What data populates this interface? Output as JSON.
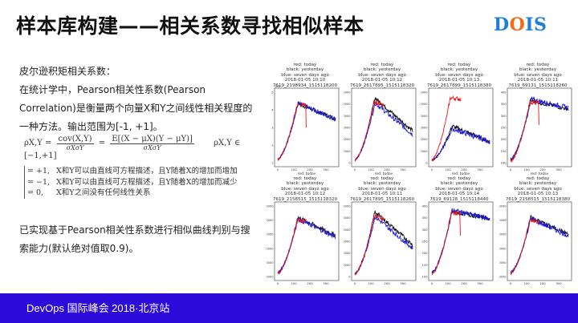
{
  "header": {
    "title": "样本库构建——相关系数寻找相似样本",
    "logo": {
      "text": "DOIS",
      "letters": [
        "D",
        "O",
        "I",
        "S"
      ],
      "colors": {
        "blue": "#1f7fd6",
        "orange": "#f26b1d"
      }
    }
  },
  "left_panel": {
    "heading": "皮尔逊积矩相关系数：",
    "paragraph_lines": [
      "在统计学中，Pearson相关性系数(Pearson",
      "Correlation)是衡量两个向量X和Y之间线性相关程度的",
      "一种方法。输出范围为[-1, +1]。"
    ],
    "formula": {
      "lhs": "ρX,Y =",
      "frac1_num": "cov(X,Y)",
      "frac1_den": "σXσY",
      "eq": "=",
      "frac2_num": "E[(X − μX)(Y − μY)]",
      "frac2_den": "σXσY",
      "range": "ρX,Y ∈ [−1,+1]"
    },
    "cases": [
      {
        "value": "= +1,",
        "desc": "X和Y可以由直线可方程描述，且Y随着X的增加而增加"
      },
      {
        "value": "= −1,",
        "desc": "X和Y可以由直线可方程描述，且Y随着X的增加而减少"
      },
      {
        "value": "= 0,",
        "desc": "X和Y之间没有任何线性关系"
      }
    ],
    "summary_lines": [
      "已实现基于Pearson相关性系数进行相似曲线判别与搜",
      "索能力(默认绝对值取0.9)。"
    ]
  },
  "charts": {
    "legend_lines": [
      "red: today",
      "black: yesterday",
      "blue: seven days ago"
    ],
    "xlabel": "red: today",
    "x_ticks": [
      "0",
      "100",
      "200",
      "300"
    ],
    "colors": {
      "today": "#e8141a",
      "yesterday": "#111111",
      "seven_days_ago": "#1b17d8"
    },
    "items": [
      {
        "datetime": "2018-01-05 10:10",
        "id": "7619_2198934_1515118200",
        "y_ticks": [
          "1",
          "2",
          "3",
          "4",
          "5"
        ],
        "y_offset": "1e6"
      },
      {
        "datetime": "2018-01-05 10:12",
        "id": "7619_2617895_1515118320",
        "y_ticks": [
          "0",
          "500000",
          "1000000",
          "1500000",
          "2000000",
          "2500000",
          "3000000"
        ]
      },
      {
        "datetime": "2018-01-05 10:13",
        "id": "7619_2617899_1515118380",
        "y_ticks": [
          "0",
          "50000",
          "100000",
          "150000",
          "200000",
          "250000",
          "300000"
        ]
      },
      {
        "datetime": "2018-01-05 10:11",
        "id": "7619_69131_1515118260",
        "y_ticks": [
          "100",
          "150",
          "200",
          "250",
          "300",
          "350",
          "400"
        ]
      },
      {
        "datetime": "2018-01-05 10:12",
        "id": "7619_2158515_1515118320",
        "y_ticks": [
          "600000",
          "800000",
          "1000000",
          "1200000",
          "1400000",
          "1600000"
        ]
      },
      {
        "datetime": "2018-01-05 10:11",
        "id": "7619_2617895_1515118260",
        "y_ticks": [
          "0",
          "500000",
          "1000000",
          "1500000",
          "2000000",
          "2500000",
          "3000000"
        ]
      },
      {
        "datetime": "2018-01-05 10:14",
        "id": "7619_69128_1515118440",
        "y_ticks": [
          "100",
          "150",
          "200",
          "250",
          "300",
          "350",
          "400"
        ]
      },
      {
        "datetime": "2018-01-05 10:13",
        "id": "7619_2158515_1515118380",
        "y_ticks": [
          "600000",
          "800000",
          "1000000",
          "1200000",
          "1400000",
          "1600000"
        ]
      }
    ]
  },
  "footer": {
    "text": "DevOps 国际峰会 2018·北京站",
    "bg_color": "#2c0ad9"
  }
}
